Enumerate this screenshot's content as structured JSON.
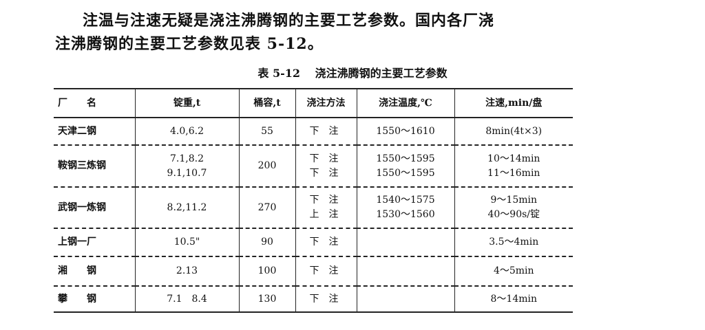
{
  "paragraph": {
    "line1": "注温与注速无疑是浇注沸腾钢的主要工艺参数。国内各厂浇",
    "line2": "注沸腾钢的主要工艺参数见表 5-12。"
  },
  "table": {
    "caption_number": "表 5-12",
    "caption_title": "浇注沸腾钢的主要工艺参数",
    "headers": [
      "厂　　名",
      "锭重,t",
      "桶容,t",
      "浇注方法",
      "浇注温度,℃",
      "注速,min/盘"
    ],
    "rows": [
      {
        "plant": "天津二钢",
        "ingot": [
          "4.0,6.2"
        ],
        "ladle": "55",
        "method": [
          "下注"
        ],
        "temp": [
          "1550～1610"
        ],
        "speed": [
          "8min(4t×3)"
        ]
      },
      {
        "plant": "鞍钢三炼钢",
        "ingot": [
          "7.1,8.2",
          "9.1,10.7"
        ],
        "ladle": "200",
        "method": [
          "下注",
          "下注"
        ],
        "temp": [
          "1550～1595",
          "1550～1595"
        ],
        "speed": [
          "10～14min",
          "11～16min"
        ]
      },
      {
        "plant": "武钢一炼钢",
        "ingot": [
          "8.2,11.2"
        ],
        "ladle": "270",
        "method": [
          "下注",
          "上注"
        ],
        "temp": [
          "1540～1575",
          "1530～1560"
        ],
        "speed": [
          "9～15min",
          "40～90s/锭"
        ]
      },
      {
        "plant": "上钢一厂",
        "ingot": [
          "10.5\""
        ],
        "ladle": "90",
        "method": [
          "下注"
        ],
        "temp": [
          ""
        ],
        "speed": [
          "3.5～4min"
        ]
      },
      {
        "plant": "湘　　钢",
        "ingot": [
          "2.13"
        ],
        "ladle": "100",
        "method": [
          "下注"
        ],
        "temp": [
          ""
        ],
        "speed": [
          "4～5min"
        ]
      },
      {
        "plant": "攀　　钢",
        "ingot": [
          "7.1　8.4"
        ],
        "ladle": "130",
        "method": [
          "下注"
        ],
        "temp": [
          ""
        ],
        "speed": [
          "8～14min"
        ]
      }
    ]
  }
}
